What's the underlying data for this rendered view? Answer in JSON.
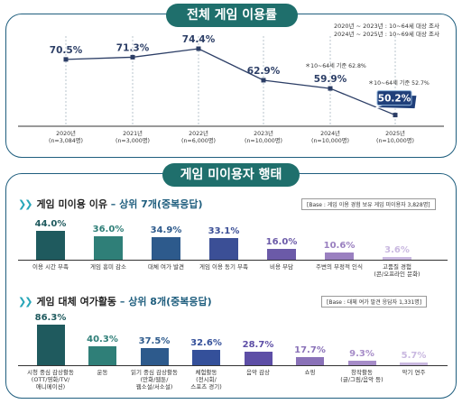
{
  "header": {
    "title": "전체 게임 이용률"
  },
  "survey_notes": [
    "2020년 ~ 2023년 : 10~64세 대상 조사",
    "2024년 ~ 2025년 : 10~69세 대상 조사"
  ],
  "section2": {
    "title": "게임 미이용자 행태"
  },
  "chart_data": [
    {
      "type": "line",
      "title": "전체 게임 이용률",
      "x": [
        "2020년\n(n=3,084명)",
        "2021년\n(n=3,000명)",
        "2022년\n(n=6,000명)",
        "2023년\n(n=10,000명)",
        "2024년\n(n=10,000명)",
        "2025년\n(n=10,000명)"
      ],
      "values": [
        70.5,
        71.3,
        74.4,
        62.9,
        59.9,
        50.2
      ],
      "value_labels": [
        "70.5%",
        "71.3%",
        "74.4%",
        "62.9%",
        "59.9%",
        "50.2%"
      ],
      "annotations": [
        "＊10~64세 기준 62.8%",
        "＊10~64세 기준 52.7%"
      ],
      "highlight_index": 5,
      "colors": {
        "line": "#2c3e66",
        "marker": "#2c3e66",
        "highlight_fill": "#1f3f7a",
        "highlight_border": "#ffffff"
      },
      "grid": "vertical-dashed"
    },
    {
      "type": "bar",
      "title": "게임 미이용 이유",
      "subtitle": "– 상위 7개(중복응답)",
      "base_note": "[Base : 게임 이용 경험 보유 게임 미이용자 3,828명]",
      "categories": [
        "이용 시간 부족",
        "게임 흥미 감소",
        "대체 여가 발견",
        "게임 이용 동기 부족",
        "비용 부담",
        "주변의 부정적 인식",
        "고품질 경험\n(콘/오프라인 문화)"
      ],
      "values": [
        44.0,
        36.0,
        34.9,
        33.1,
        16.0,
        10.6,
        3.6
      ],
      "value_labels": [
        "44.0%",
        "36.0%",
        "34.9%",
        "33.1%",
        "16.0%",
        "10.6%",
        "3.6%"
      ],
      "colors": [
        "#1f5a5e",
        "#2f7f78",
        "#2d5a8c",
        "#3b4f96",
        "#6b5aa8",
        "#9a80c0",
        "#c9b8e0"
      ]
    },
    {
      "type": "bar",
      "title": "게임 대체 여가활동",
      "subtitle": "– 상위 8개(중복응답)",
      "base_note": "[Base : 대체 여가 발견 응답자 1,331명]",
      "categories": [
        "시청 중심 감상활동\n(OTT/영화/TV/\n애니메이션)",
        "운동",
        "읽기 중심 감상활동\n(만화/웹툰/\n웹소설/서소설)",
        "체험활동\n(전시회/\n스포츠 경기)",
        "음악 감상",
        "쇼핑",
        "창작활동\n(글/그림/음악 등)",
        "악기 연주"
      ],
      "values": [
        86.3,
        40.3,
        37.5,
        32.6,
        28.7,
        17.7,
        9.3,
        5.7
      ],
      "value_labels": [
        "86.3%",
        "40.3%",
        "37.5%",
        "32.6%",
        "28.7%",
        "17.7%",
        "9.3%",
        "5.7%"
      ],
      "colors": [
        "#1f5a5e",
        "#2f7f78",
        "#2d5a8c",
        "#34509a",
        "#5d4ea6",
        "#8a72b8",
        "#a68cc8",
        "#c9b8e0"
      ]
    }
  ]
}
